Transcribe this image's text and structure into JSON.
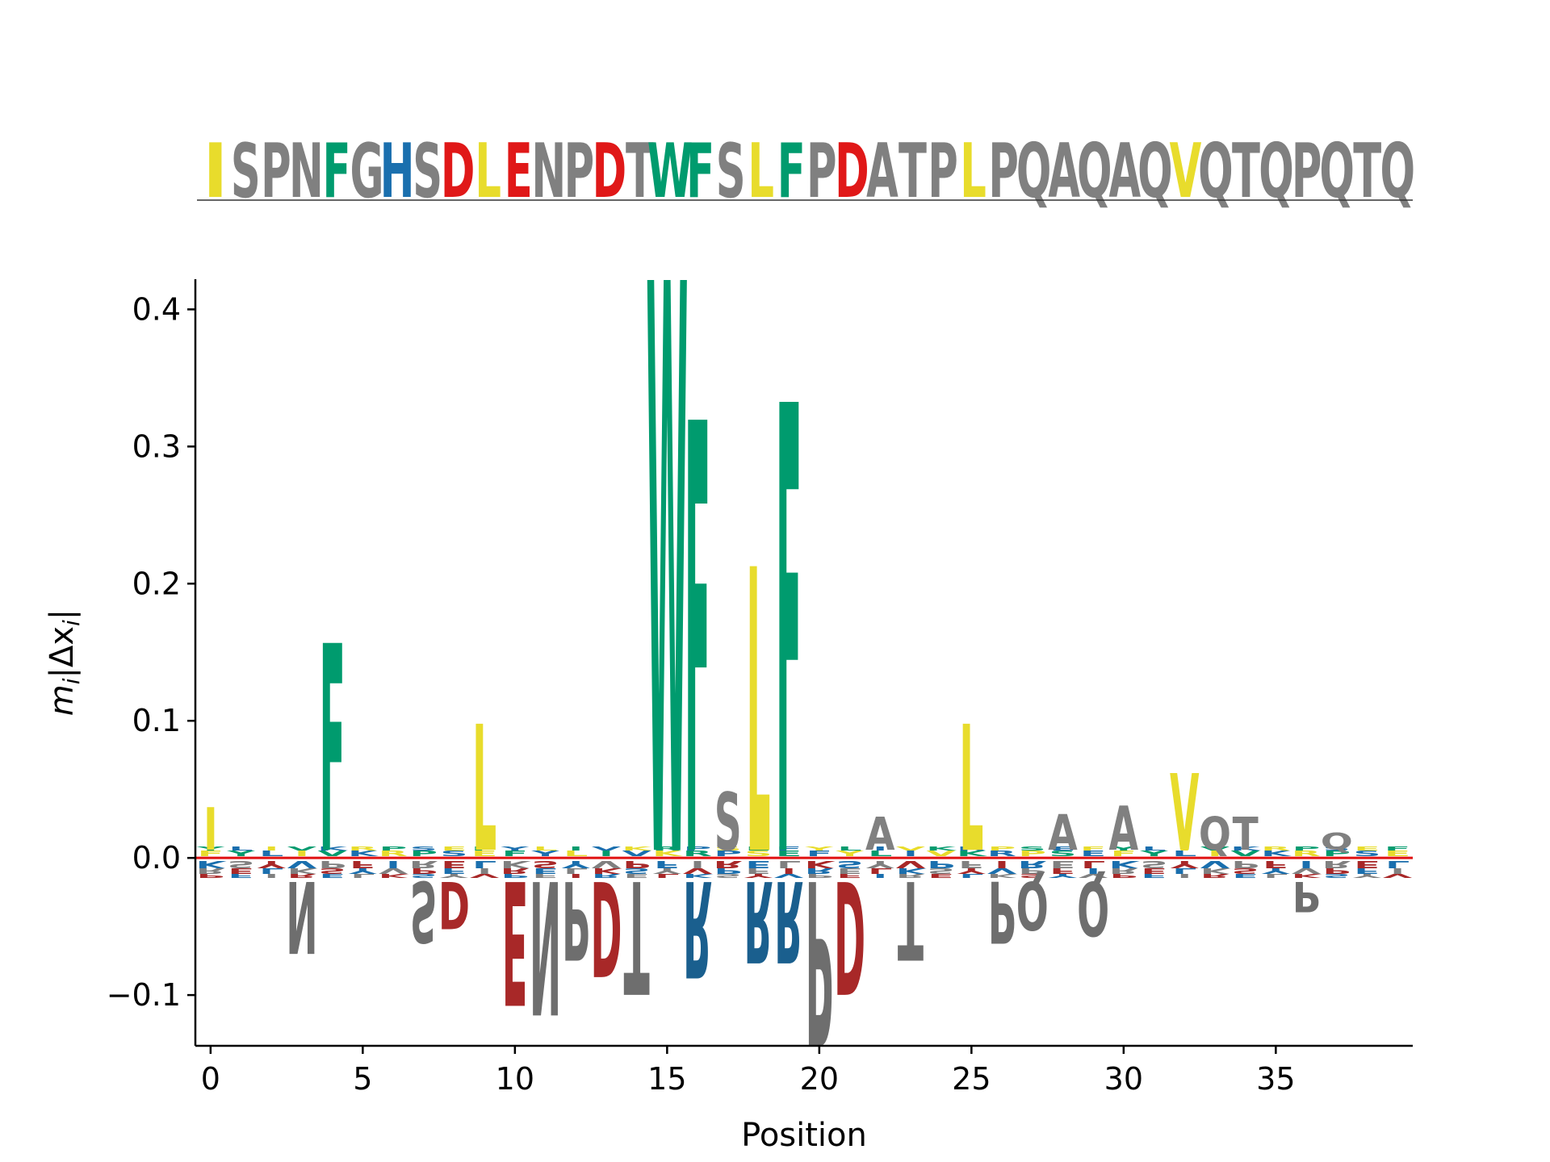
{
  "chart_data": {
    "type": "sequence-logo",
    "sequence": "ISPNFGHSDLENPDTWFSLFPDATPLPQAQAQVQTQPQTQ",
    "xlabel": "Position",
    "ylabel_main": "m",
    "ylabel_sub": "i",
    "ylabel_rest": "|Δx",
    "ylabel_sub2": "i",
    "ylabel_close": "|",
    "xlim": [
      -0.5,
      39.5
    ],
    "ylim": [
      -0.137,
      0.422
    ],
    "xticks": [
      0,
      5,
      10,
      15,
      20,
      25,
      30,
      35
    ],
    "yticks": [
      -0.1,
      0.0,
      0.1,
      0.2,
      0.3,
      0.4
    ],
    "ytick_labels": [
      "−0.1",
      "0.0",
      "0.1",
      "0.2",
      "0.3",
      "0.4"
    ],
    "xtick_labels": [
      "0",
      "5",
      "10",
      "15",
      "20",
      "25",
      "30",
      "35"
    ],
    "zero_line_color": "#e01010",
    "colors": {
      "hydrophobic": "#e8dc2c",
      "aromatic": "#009b6e",
      "acidic": "#e01818",
      "basic_blue": "#1a6fae",
      "neutral": "#808080",
      "dark_red": "#a82828",
      "dark_gray": "#6e6e6e",
      "dark_blue": "#1a5f8e"
    },
    "sequence_colors": {
      "I": "#e8dc2c",
      "L": "#e8dc2c",
      "V": "#e8dc2c",
      "F": "#009b6e",
      "W": "#009b6e",
      "D": "#e01818",
      "E": "#e01818",
      "H": "#1a6fae"
    },
    "positive_letters": [
      {
        "pos": 0,
        "aa": "I",
        "val": 0.037,
        "color": "#e8dc2c"
      },
      {
        "pos": 4,
        "aa": "F",
        "val": 0.157,
        "color": "#009b6e"
      },
      {
        "pos": 9,
        "aa": "L",
        "val": 0.098,
        "color": "#e8dc2c"
      },
      {
        "pos": 15,
        "aa": "W",
        "val": 0.422,
        "color": "#009b6e"
      },
      {
        "pos": 16,
        "aa": "F",
        "val": 0.32,
        "color": "#009b6e"
      },
      {
        "pos": 17,
        "aa": "S",
        "val": 0.048,
        "color": "#808080"
      },
      {
        "pos": 18,
        "aa": "L",
        "val": 0.213,
        "color": "#e8dc2c"
      },
      {
        "pos": 19,
        "aa": "F",
        "val": 0.333,
        "color": "#009b6e"
      },
      {
        "pos": 22,
        "aa": "A",
        "val": 0.03,
        "color": "#808080"
      },
      {
        "pos": 25,
        "aa": "L",
        "val": 0.098,
        "color": "#e8dc2c"
      },
      {
        "pos": 28,
        "aa": "A",
        "val": 0.032,
        "color": "#808080"
      },
      {
        "pos": 30,
        "aa": "A",
        "val": 0.038,
        "color": "#808080"
      },
      {
        "pos": 32,
        "aa": "V",
        "val": 0.062,
        "color": "#e8dc2c"
      },
      {
        "pos": 33,
        "aa": "Q",
        "val": 0.03,
        "color": "#808080"
      },
      {
        "pos": 34,
        "aa": "T",
        "val": 0.03,
        "color": "#808080"
      },
      {
        "pos": 37,
        "aa": "Q",
        "val": 0.018,
        "color": "#808080"
      }
    ],
    "negative_letters": [
      {
        "pos": 3,
        "aa": "N",
        "val": -0.07,
        "color": "#6e6e6e"
      },
      {
        "pos": 7,
        "aa": "S",
        "val": -0.062,
        "color": "#6e6e6e"
      },
      {
        "pos": 8,
        "aa": "D",
        "val": -0.052,
        "color": "#a82828"
      },
      {
        "pos": 10,
        "aa": "E",
        "val": -0.108,
        "color": "#a82828"
      },
      {
        "pos": 11,
        "aa": "N",
        "val": -0.115,
        "color": "#6e6e6e"
      },
      {
        "pos": 12,
        "aa": "P",
        "val": -0.075,
        "color": "#6e6e6e"
      },
      {
        "pos": 13,
        "aa": "D",
        "val": -0.087,
        "color": "#a82828"
      },
      {
        "pos": 14,
        "aa": "T",
        "val": -0.1,
        "color": "#6e6e6e"
      },
      {
        "pos": 16,
        "aa": "R",
        "val": -0.088,
        "color": "#1a5f8e"
      },
      {
        "pos": 18,
        "aa": "R",
        "val": -0.077,
        "color": "#1a5f8e"
      },
      {
        "pos": 19,
        "aa": "R",
        "val": -0.077,
        "color": "#1a5f8e"
      },
      {
        "pos": 20,
        "aa": "P",
        "val": -0.137,
        "color": "#6e6e6e"
      },
      {
        "pos": 21,
        "aa": "D",
        "val": -0.1,
        "color": "#a82828"
      },
      {
        "pos": 23,
        "aa": "T",
        "val": -0.075,
        "color": "#6e6e6e"
      },
      {
        "pos": 26,
        "aa": "P",
        "val": -0.063,
        "color": "#6e6e6e"
      },
      {
        "pos": 27,
        "aa": "Q",
        "val": -0.053,
        "color": "#6e6e6e"
      },
      {
        "pos": 29,
        "aa": "Q",
        "val": -0.057,
        "color": "#6e6e6e"
      },
      {
        "pos": 36,
        "aa": "P",
        "val": -0.04,
        "color": "#6e6e6e"
      }
    ],
    "small_band_pos": 0.008,
    "small_band_neg": -0.018
  }
}
